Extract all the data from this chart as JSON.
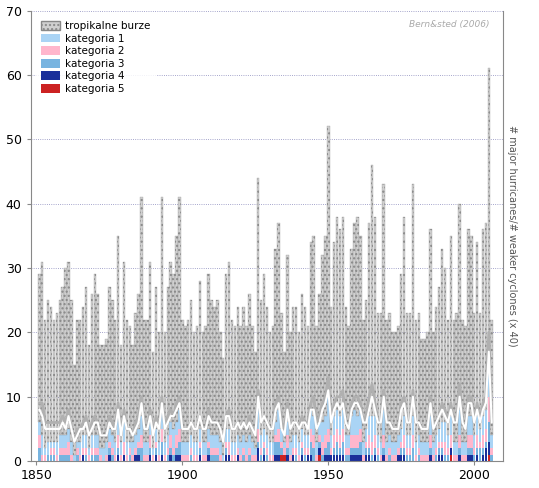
{
  "title": "Bern&sted (2006)",
  "ylabel_right": "# major hurricanes/# weaker cyclones (x 40)",
  "years": [
    1851,
    1852,
    1853,
    1854,
    1855,
    1856,
    1857,
    1858,
    1859,
    1860,
    1861,
    1862,
    1863,
    1864,
    1865,
    1866,
    1867,
    1868,
    1869,
    1870,
    1871,
    1872,
    1873,
    1874,
    1875,
    1876,
    1877,
    1878,
    1879,
    1880,
    1881,
    1882,
    1883,
    1884,
    1885,
    1886,
    1887,
    1888,
    1889,
    1890,
    1891,
    1892,
    1893,
    1894,
    1895,
    1896,
    1897,
    1898,
    1899,
    1900,
    1901,
    1902,
    1903,
    1904,
    1905,
    1906,
    1907,
    1908,
    1909,
    1910,
    1911,
    1912,
    1913,
    1914,
    1915,
    1916,
    1917,
    1918,
    1919,
    1920,
    1921,
    1922,
    1923,
    1924,
    1925,
    1926,
    1927,
    1928,
    1929,
    1930,
    1931,
    1932,
    1933,
    1934,
    1935,
    1936,
    1937,
    1938,
    1939,
    1940,
    1941,
    1942,
    1943,
    1944,
    1945,
    1946,
    1947,
    1948,
    1949,
    1950,
    1951,
    1952,
    1953,
    1954,
    1955,
    1956,
    1957,
    1958,
    1959,
    1960,
    1961,
    1962,
    1963,
    1964,
    1965,
    1966,
    1967,
    1968,
    1969,
    1970,
    1971,
    1972,
    1973,
    1974,
    1975,
    1976,
    1977,
    1978,
    1979,
    1980,
    1981,
    1982,
    1983,
    1984,
    1985,
    1986,
    1987,
    1988,
    1989,
    1990,
    1991,
    1992,
    1993,
    1994,
    1995,
    1996,
    1997,
    1998,
    1999,
    2000,
    2001,
    2002,
    2003,
    2004,
    2005,
    2006
  ],
  "cat5": [
    0,
    0,
    0,
    0,
    0,
    0,
    0,
    0,
    0,
    0,
    0,
    0,
    0,
    0,
    0,
    0,
    0,
    0,
    0,
    0,
    0,
    0,
    0,
    0,
    0,
    0,
    0,
    0,
    0,
    0,
    0,
    0,
    0,
    0,
    0,
    0,
    0,
    0,
    0,
    0,
    0,
    0,
    0,
    0,
    0,
    0,
    0,
    0,
    0,
    0,
    0,
    0,
    0,
    0,
    0,
    0,
    0,
    0,
    0,
    0,
    0,
    0,
    0,
    0,
    0,
    0,
    0,
    0,
    0,
    0,
    0,
    0,
    0,
    0,
    0,
    0,
    0,
    0,
    0,
    0,
    0,
    0,
    0,
    1,
    1,
    0,
    0,
    0,
    0,
    0,
    0,
    0,
    0,
    0,
    0,
    0,
    1,
    0,
    0,
    0,
    0,
    0,
    0,
    0,
    0,
    0,
    0,
    0,
    0,
    0,
    0,
    0,
    0,
    0,
    0,
    0,
    0,
    0,
    0,
    0,
    0,
    0,
    0,
    0,
    0,
    0,
    0,
    0,
    0,
    0,
    0,
    0,
    0,
    0,
    0,
    0,
    0,
    0,
    0,
    0,
    0,
    1,
    0,
    0,
    0,
    0,
    0,
    0,
    0,
    0,
    0,
    0,
    0,
    0,
    1,
    0
  ],
  "cat4": [
    0,
    0,
    0,
    0,
    0,
    0,
    0,
    0,
    0,
    0,
    0,
    0,
    0,
    0,
    0,
    1,
    0,
    0,
    0,
    0,
    0,
    0,
    0,
    0,
    1,
    0,
    0,
    1,
    0,
    1,
    0,
    0,
    0,
    1,
    1,
    0,
    0,
    0,
    1,
    0,
    1,
    0,
    1,
    0,
    0,
    1,
    0,
    1,
    1,
    0,
    0,
    0,
    0,
    0,
    0,
    1,
    0,
    0,
    1,
    0,
    0,
    0,
    0,
    0,
    1,
    1,
    0,
    0,
    1,
    0,
    0,
    0,
    0,
    0,
    0,
    2,
    0,
    1,
    0,
    0,
    0,
    1,
    1,
    0,
    0,
    1,
    0,
    1,
    0,
    0,
    1,
    0,
    1,
    1,
    0,
    0,
    1,
    0,
    1,
    1,
    1,
    1,
    1,
    1,
    1,
    0,
    0,
    1,
    1,
    1,
    1,
    0,
    1,
    1,
    0,
    1,
    0,
    0,
    1,
    0,
    0,
    0,
    0,
    1,
    1,
    1,
    0,
    0,
    0,
    0,
    0,
    0,
    0,
    0,
    1,
    0,
    0,
    1,
    1,
    0,
    0,
    1,
    0,
    0,
    1,
    0,
    0,
    1,
    1,
    0,
    1,
    0,
    1,
    2,
    2,
    0
  ],
  "cat3": [
    2,
    0,
    0,
    1,
    1,
    1,
    0,
    1,
    1,
    1,
    1,
    0,
    0,
    1,
    0,
    0,
    1,
    0,
    1,
    1,
    1,
    0,
    0,
    0,
    1,
    1,
    0,
    1,
    0,
    0,
    0,
    1,
    0,
    0,
    1,
    2,
    0,
    0,
    1,
    0,
    1,
    0,
    2,
    0,
    1,
    1,
    1,
    1,
    2,
    0,
    0,
    0,
    1,
    0,
    0,
    1,
    0,
    0,
    1,
    1,
    1,
    1,
    0,
    0,
    1,
    0,
    0,
    0,
    0,
    0,
    1,
    0,
    1,
    0,
    0,
    1,
    1,
    1,
    1,
    0,
    0,
    2,
    2,
    1,
    0,
    1,
    0,
    0,
    1,
    0,
    1,
    1,
    0,
    2,
    2,
    0,
    1,
    1,
    1,
    2,
    0,
    1,
    2,
    1,
    2,
    1,
    1,
    1,
    1,
    1,
    2,
    0,
    1,
    1,
    1,
    1,
    1,
    0,
    1,
    0,
    1,
    0,
    0,
    0,
    1,
    1,
    1,
    1,
    2,
    0,
    1,
    0,
    0,
    0,
    1,
    0,
    1,
    1,
    1,
    1,
    1,
    0,
    0,
    0,
    1,
    0,
    0,
    1,
    1,
    1,
    1,
    2,
    1,
    1,
    3,
    1
  ],
  "cat2": [
    2,
    1,
    1,
    0,
    1,
    1,
    1,
    1,
    1,
    1,
    2,
    1,
    0,
    1,
    1,
    1,
    1,
    1,
    1,
    1,
    1,
    1,
    0,
    1,
    1,
    1,
    1,
    2,
    1,
    2,
    1,
    1,
    1,
    1,
    1,
    2,
    1,
    1,
    2,
    1,
    1,
    1,
    2,
    1,
    1,
    2,
    1,
    2,
    2,
    1,
    1,
    1,
    1,
    1,
    1,
    1,
    1,
    1,
    1,
    1,
    1,
    1,
    1,
    0,
    1,
    2,
    1,
    1,
    1,
    1,
    1,
    1,
    1,
    1,
    1,
    2,
    1,
    1,
    1,
    1,
    1,
    1,
    2,
    1,
    1,
    2,
    1,
    1,
    1,
    1,
    1,
    1,
    1,
    2,
    2,
    1,
    1,
    2,
    2,
    2,
    1,
    2,
    2,
    2,
    2,
    1,
    1,
    2,
    2,
    2,
    2,
    1,
    1,
    2,
    2,
    2,
    1,
    1,
    2,
    1,
    1,
    1,
    1,
    1,
    1,
    2,
    1,
    1,
    2,
    1,
    1,
    1,
    1,
    1,
    2,
    1,
    1,
    1,
    1,
    2,
    1,
    2,
    1,
    1,
    2,
    1,
    1,
    2,
    2,
    1,
    2,
    1,
    2,
    2,
    4,
    1
  ],
  "cat1": [
    2,
    3,
    1,
    2,
    1,
    1,
    2,
    2,
    2,
    2,
    2,
    2,
    1,
    1,
    2,
    2,
    2,
    1,
    2,
    2,
    2,
    1,
    2,
    2,
    2,
    2,
    2,
    3,
    2,
    3,
    2,
    1,
    2,
    2,
    2,
    3,
    2,
    2,
    3,
    1,
    2,
    2,
    3,
    2,
    2,
    2,
    3,
    2,
    3,
    2,
    2,
    2,
    2,
    2,
    2,
    2,
    2,
    2,
    2,
    2,
    2,
    2,
    2,
    1,
    2,
    2,
    2,
    2,
    2,
    2,
    2,
    2,
    2,
    2,
    1,
    4,
    2,
    2,
    2,
    2,
    2,
    2,
    3,
    2,
    1,
    2,
    2,
    2,
    2,
    2,
    2,
    2,
    2,
    3,
    3,
    2,
    2,
    3,
    3,
    5,
    2,
    3,
    3,
    3,
    3,
    2,
    2,
    3,
    4,
    3,
    3,
    2,
    2,
    3,
    4,
    3,
    2,
    2,
    4,
    2,
    2,
    2,
    2,
    2,
    2,
    3,
    2,
    2,
    3,
    2,
    2,
    2,
    2,
    2,
    3,
    2,
    2,
    2,
    3,
    3,
    2,
    3,
    2,
    2,
    4,
    2,
    2,
    3,
    3,
    2,
    3,
    2,
    3,
    3,
    7,
    2
  ],
  "total_heights": [
    29,
    31,
    22,
    25,
    24,
    22,
    23,
    25,
    27,
    30,
    31,
    25,
    15,
    22,
    22,
    24,
    27,
    18,
    26,
    29,
    26,
    18,
    18,
    19,
    27,
    25,
    22,
    35,
    18,
    31,
    22,
    21,
    18,
    23,
    26,
    41,
    22,
    22,
    31,
    17,
    27,
    20,
    41,
    20,
    27,
    31,
    29,
    35,
    41,
    22,
    21,
    22,
    25,
    20,
    21,
    28,
    20,
    21,
    29,
    25,
    24,
    25,
    20,
    16,
    29,
    31,
    22,
    21,
    24,
    21,
    24,
    21,
    26,
    21,
    17,
    44,
    25,
    29,
    24,
    20,
    21,
    33,
    37,
    23,
    17,
    32,
    20,
    24,
    24,
    20,
    26,
    24,
    21,
    34,
    35,
    21,
    26,
    32,
    35,
    52,
    24,
    34,
    38,
    36,
    38,
    24,
    21,
    33,
    37,
    38,
    35,
    22,
    25,
    37,
    46,
    38,
    23,
    23,
    43,
    22,
    23,
    20,
    20,
    21,
    29,
    38,
    23,
    23,
    43,
    22,
    23,
    19,
    19,
    20,
    36,
    20,
    24,
    27,
    33,
    30,
    22,
    35,
    22,
    23,
    40,
    22,
    21,
    36,
    35,
    23,
    34,
    23,
    36,
    37,
    61,
    22
  ],
  "line1_values": [
    8,
    7,
    5,
    5,
    5,
    5,
    5,
    5,
    6,
    5,
    7,
    5,
    3,
    4,
    5,
    5,
    6,
    4,
    5,
    6,
    6,
    4,
    4,
    4,
    6,
    5,
    5,
    8,
    4,
    7,
    5,
    5,
    4,
    5,
    6,
    9,
    5,
    5,
    7,
    4,
    6,
    5,
    9,
    5,
    6,
    7,
    7,
    8,
    9,
    5,
    5,
    5,
    6,
    5,
    5,
    7,
    5,
    5,
    7,
    6,
    6,
    6,
    5,
    3,
    7,
    7,
    5,
    5,
    6,
    5,
    6,
    5,
    6,
    5,
    4,
    10,
    6,
    7,
    6,
    5,
    5,
    8,
    9,
    5,
    4,
    8,
    5,
    6,
    6,
    5,
    6,
    6,
    5,
    8,
    8,
    5,
    6,
    8,
    9,
    11,
    6,
    8,
    9,
    8,
    9,
    6,
    5,
    8,
    9,
    9,
    8,
    6,
    6,
    8,
    10,
    8,
    6,
    6,
    10,
    6,
    6,
    5,
    5,
    5,
    8,
    9,
    6,
    6,
    10,
    6,
    6,
    5,
    5,
    5,
    9,
    5,
    6,
    7,
    8,
    7,
    6,
    8,
    6,
    6,
    10,
    6,
    5,
    9,
    9,
    6,
    8,
    6,
    8,
    9,
    17,
    6
  ],
  "line2_values": [
    9,
    9,
    6,
    6,
    6,
    6,
    6,
    6,
    7,
    6,
    8,
    5,
    3,
    5,
    5,
    6,
    7,
    4,
    6,
    7,
    6,
    4,
    4,
    4,
    7,
    6,
    5,
    9,
    4,
    8,
    5,
    5,
    4,
    6,
    7,
    10,
    5,
    5,
    8,
    4,
    7,
    5,
    10,
    5,
    7,
    8,
    7,
    9,
    10,
    5,
    5,
    5,
    6,
    5,
    5,
    7,
    5,
    5,
    8,
    6,
    6,
    6,
    5,
    3,
    7,
    8,
    5,
    5,
    6,
    5,
    6,
    5,
    7,
    5,
    4,
    11,
    6,
    7,
    6,
    5,
    5,
    9,
    10,
    6,
    5,
    9,
    5,
    6,
    6,
    5,
    7,
    6,
    6,
    9,
    10,
    6,
    7,
    9,
    10,
    13,
    6,
    9,
    10,
    10,
    11,
    6,
    5,
    9,
    10,
    10,
    9,
    6,
    7,
    10,
    12,
    9,
    6,
    6,
    11,
    6,
    6,
    5,
    5,
    5,
    9,
    10,
    6,
    6,
    11,
    6,
    6,
    5,
    5,
    5,
    10,
    5,
    6,
    7,
    9,
    8,
    6,
    9,
    6,
    6,
    12,
    6,
    5,
    10,
    10,
    6,
    9,
    6,
    9,
    10,
    20,
    6
  ],
  "colors": {
    "tropical": "#d0d0d0",
    "cat1": "#aad4f5",
    "cat2": "#ffb6cc",
    "cat3": "#78b4e0",
    "cat4": "#1a2f9a",
    "cat5": "#cc2222",
    "line1": "#ffffff",
    "line2": "#b0b0b0",
    "background": "#ffffff",
    "grid": "#8888bb"
  },
  "ylim": [
    0,
    70
  ],
  "xlim": [
    1848,
    2010
  ],
  "legend_labels": [
    "tropikalne burze",
    "kategoria 1",
    "kategoria 2",
    "kategoria 3",
    "kategoria 4",
    "kategoria 5"
  ]
}
